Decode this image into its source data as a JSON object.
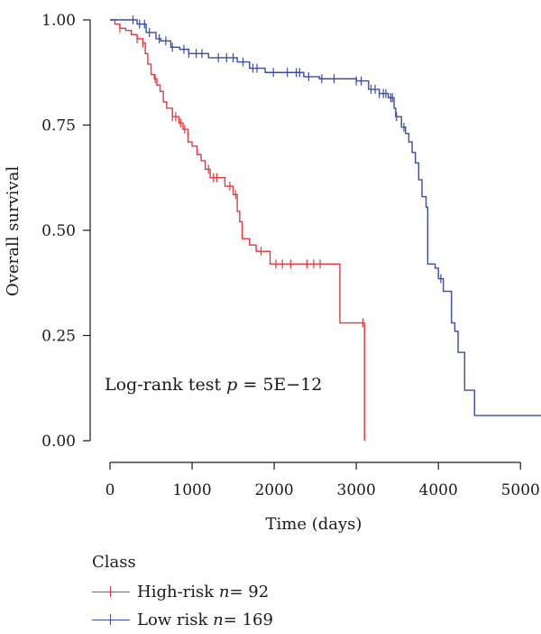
{
  "chart_data": {
    "type": "line",
    "xlabel": "Time (days)",
    "ylabel": "Overall survival",
    "xlim": [
      0,
      5250
    ],
    "ylim": [
      0,
      1
    ],
    "x_ticks": [
      "0",
      "1000",
      "2000",
      "3000",
      "4000",
      "5000"
    ],
    "y_ticks": [
      "0.00",
      "0.25",
      "0.50",
      "0.75",
      "1.00"
    ],
    "annotation": "Log-rank test ",
    "annotation_p": "p",
    "annotation_value": " = 5E−12",
    "legend_title": "Class",
    "series": [
      {
        "name": "High-risk",
        "n_label": "n",
        "n_value": " = 92",
        "color": "#e8383d",
        "steps": [
          [
            0,
            1.0
          ],
          [
            60,
            0.99
          ],
          [
            120,
            0.98
          ],
          [
            190,
            0.975
          ],
          [
            260,
            0.965
          ],
          [
            330,
            0.955
          ],
          [
            400,
            0.945
          ],
          [
            430,
            0.92
          ],
          [
            460,
            0.895
          ],
          [
            500,
            0.87
          ],
          [
            540,
            0.86
          ],
          [
            570,
            0.845
          ],
          [
            610,
            0.83
          ],
          [
            650,
            0.805
          ],
          [
            690,
            0.79
          ],
          [
            760,
            0.77
          ],
          [
            840,
            0.755
          ],
          [
            890,
            0.74
          ],
          [
            950,
            0.71
          ],
          [
            1000,
            0.7
          ],
          [
            1060,
            0.68
          ],
          [
            1110,
            0.665
          ],
          [
            1160,
            0.645
          ],
          [
            1220,
            0.625
          ],
          [
            1400,
            0.605
          ],
          [
            1500,
            0.585
          ],
          [
            1550,
            0.545
          ],
          [
            1580,
            0.52
          ],
          [
            1610,
            0.48
          ],
          [
            1700,
            0.465
          ],
          [
            1780,
            0.45
          ],
          [
            1950,
            0.42
          ],
          [
            2800,
            0.28
          ],
          [
            3100,
            0.0
          ]
        ],
        "censor_x": [
          120,
          330,
          400,
          550,
          760,
          800,
          860,
          910,
          1200,
          1260,
          1300,
          1460,
          1530,
          1840,
          2020,
          2100,
          2200,
          2400,
          2480,
          2560,
          3080
        ]
      },
      {
        "name": "Low risk",
        "n_label": "n",
        "n_value": " = 169",
        "color": "#3b4ba6",
        "steps": [
          [
            0,
            1.0
          ],
          [
            330,
            0.99
          ],
          [
            440,
            0.97
          ],
          [
            560,
            0.955
          ],
          [
            620,
            0.95
          ],
          [
            740,
            0.935
          ],
          [
            850,
            0.93
          ],
          [
            960,
            0.92
          ],
          [
            1200,
            0.91
          ],
          [
            1550,
            0.9
          ],
          [
            1700,
            0.885
          ],
          [
            1890,
            0.875
          ],
          [
            2360,
            0.865
          ],
          [
            2550,
            0.86
          ],
          [
            3000,
            0.855
          ],
          [
            3150,
            0.835
          ],
          [
            3280,
            0.825
          ],
          [
            3390,
            0.815
          ],
          [
            3460,
            0.79
          ],
          [
            3480,
            0.77
          ],
          [
            3550,
            0.745
          ],
          [
            3600,
            0.73
          ],
          [
            3640,
            0.71
          ],
          [
            3680,
            0.685
          ],
          [
            3720,
            0.66
          ],
          [
            3760,
            0.62
          ],
          [
            3800,
            0.58
          ],
          [
            3850,
            0.555
          ],
          [
            3870,
            0.42
          ],
          [
            3960,
            0.41
          ],
          [
            4000,
            0.385
          ],
          [
            4060,
            0.355
          ],
          [
            4160,
            0.28
          ],
          [
            4200,
            0.26
          ],
          [
            4240,
            0.21
          ],
          [
            4320,
            0.12
          ],
          [
            4440,
            0.06
          ],
          [
            5250,
            0.06
          ]
        ],
        "censor_x": [
          280,
          360,
          420,
          480,
          600,
          680,
          760,
          900,
          960,
          1050,
          1120,
          1320,
          1420,
          1500,
          1620,
          1740,
          1790,
          1990,
          2160,
          2270,
          2310,
          2420,
          2580,
          2730,
          3000,
          3060,
          3180,
          3230,
          3280,
          3330,
          3360,
          3420,
          3440,
          3490,
          3580,
          4030
        ]
      }
    ]
  }
}
